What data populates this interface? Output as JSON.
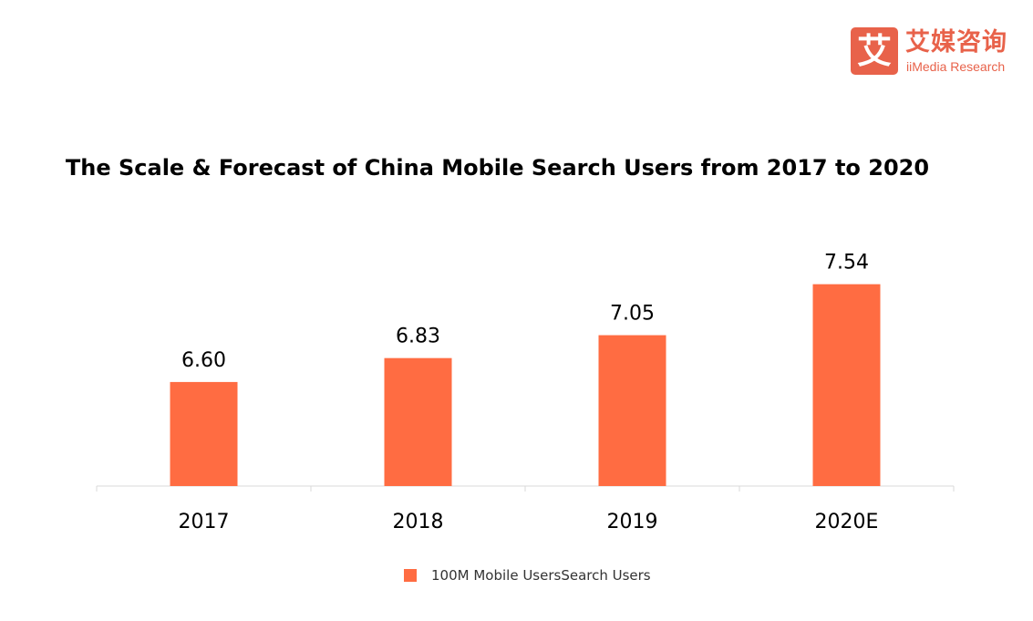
{
  "brand": {
    "mark": "艾",
    "name_cn": "艾媒咨询",
    "name_en": "iiMedia Research",
    "color": "#e8624a"
  },
  "chart_data": {
    "type": "bar",
    "title": "The Scale & Forecast of China Mobile Search Users from 2017 to 2020",
    "categories": [
      "2017",
      "2018",
      "2019",
      "2020E"
    ],
    "series": [
      {
        "name": "100M Mobile UsersSearch Users",
        "values": [
          6.6,
          6.83,
          7.05,
          7.54
        ],
        "labels": [
          "6.60",
          "6.83",
          "7.05",
          "7.54"
        ],
        "color": "#ff6c42"
      }
    ],
    "xlabel": "",
    "ylabel": "",
    "ylim": [
      5.6,
      7.8
    ],
    "grid": false,
    "legend": "bottom"
  }
}
